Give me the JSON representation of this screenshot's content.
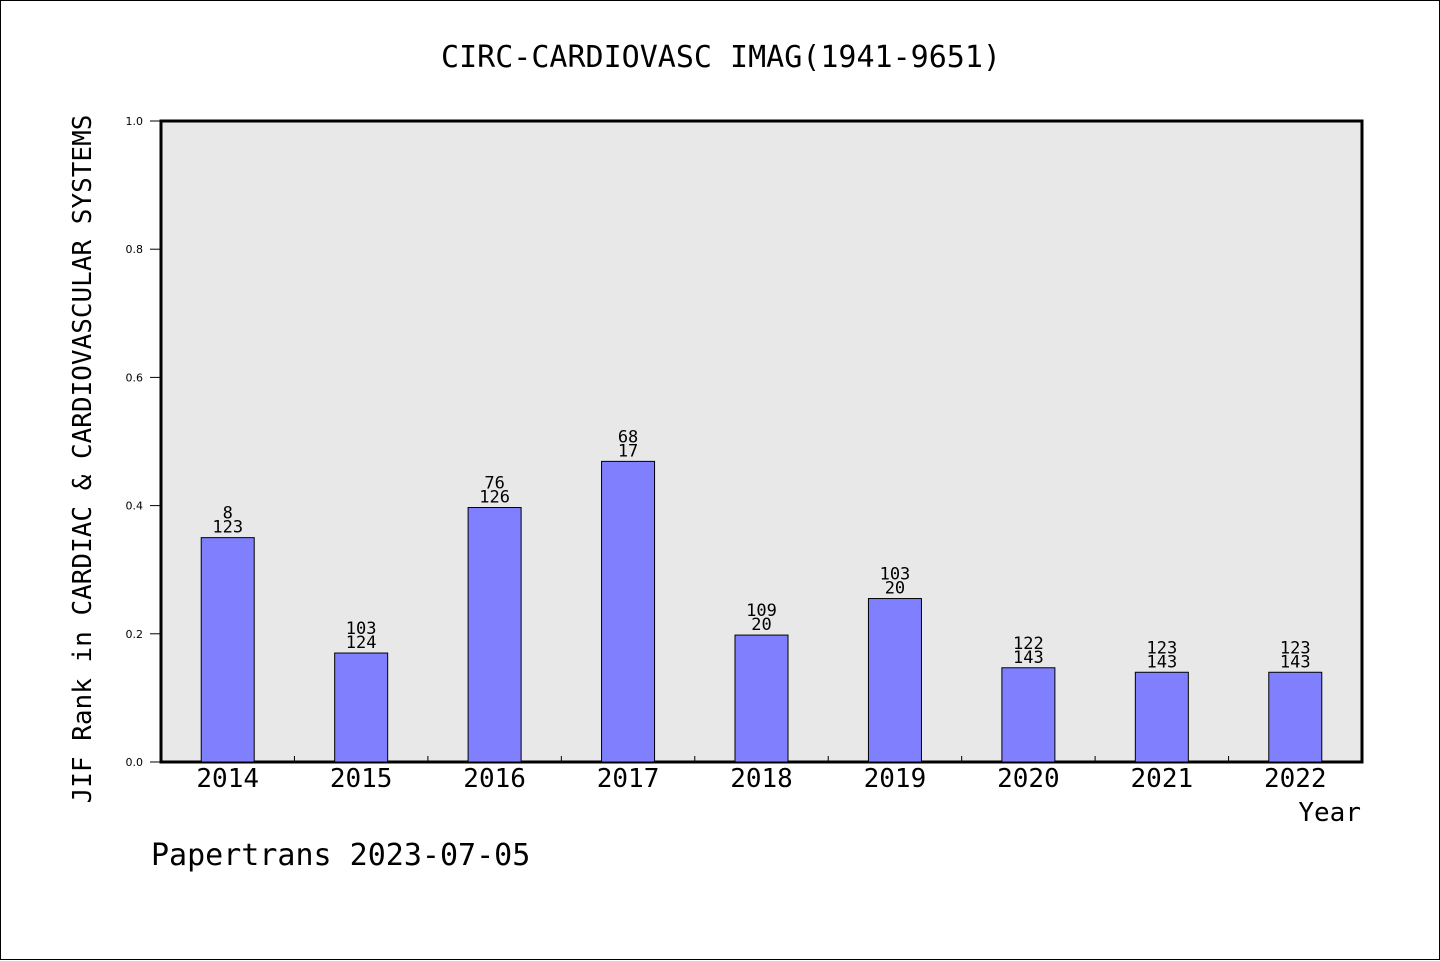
{
  "chart_data": {
    "type": "bar",
    "title": "CIRC-CARDIOVASC IMAG(1941-9651)",
    "xlabel": "Year",
    "ylabel": "JIF Rank in CARDIAC & CARDIOVASCULAR SYSTEMS",
    "ylim": [
      0,
      1.0
    ],
    "yticks": [
      "0.0",
      "0.2",
      "0.4",
      "0.6",
      "0.8",
      "1.0"
    ],
    "categories": [
      "2014",
      "2015",
      "2016",
      "2017",
      "2018",
      "2019",
      "2020",
      "2021",
      "2022"
    ],
    "values": [
      0.35,
      0.17,
      0.397,
      0.469,
      0.198,
      0.255,
      0.147,
      0.14,
      0.14
    ],
    "labels_top": [
      "8",
      "103",
      "76",
      "68",
      "109",
      "103",
      "122",
      "123",
      "123"
    ],
    "labels_bottom": [
      "123",
      "124",
      "126",
      "17",
      "20",
      "20",
      "143",
      "143",
      "143"
    ],
    "grid": false,
    "colors": {
      "bar": "#8080ff",
      "plot_bg": "#e8e8e8",
      "axis": "#000000"
    }
  },
  "footer": "Papertrans 2023-07-05"
}
